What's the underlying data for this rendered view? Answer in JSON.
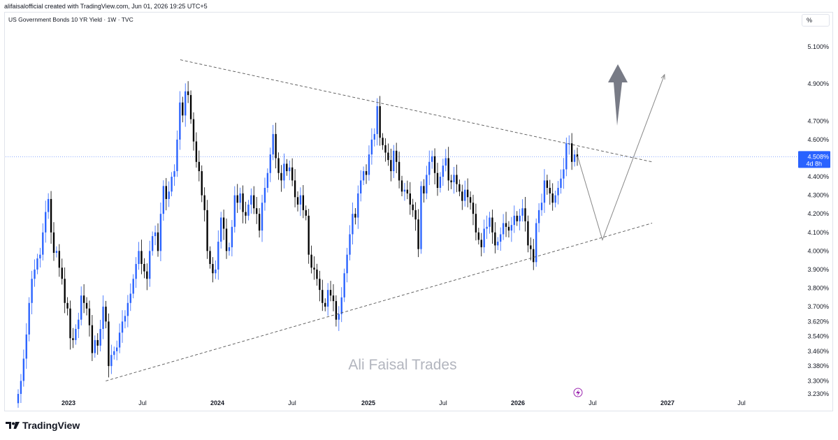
{
  "header": {
    "creator_line": "alifaisalofficial created with TradingView.com, Jun 01, 2026 19:25 UTC+5",
    "symbol_line": "US Government Bonds 10 YR Yield · 1W · TVC",
    "scale_button": "%"
  },
  "footer": {
    "brand": "TradingView"
  },
  "watermark": "Ali Faisal Trades",
  "colors": {
    "up": "#2962ff",
    "down": "#000000",
    "current_price": "#2962ff",
    "trendline": "#555555",
    "projection": "#888888"
  },
  "chart_data": {
    "type": "candlestick",
    "x_ticks": [
      "2023",
      "Jul",
      "2024",
      "Jul",
      "2025",
      "Jul",
      "2026",
      "Jul",
      "2027",
      "Jul"
    ],
    "y_ticks": [
      "5.100%",
      "4.900%",
      "4.700%",
      "4.600%",
      "4.400%",
      "4.300%",
      "4.200%",
      "4.100%",
      "4.000%",
      "3.900%",
      "3.800%",
      "3.700%",
      "3.620%",
      "3.540%",
      "3.460%",
      "3.380%",
      "3.300%",
      "3.230%"
    ],
    "ylim": [
      3.2,
      5.15
    ],
    "y_scale": "percent",
    "current_price_label": "4.508%",
    "countdown_label": "4d 8h",
    "trendlines": [
      {
        "name": "descending resistance",
        "from": [
          "2023-10",
          5.03
        ],
        "to": [
          "2026-12",
          4.48
        ]
      },
      {
        "name": "ascending support",
        "from": [
          "2023-04",
          3.3
        ],
        "to": [
          "2026-12",
          4.15
        ]
      }
    ],
    "projection": [
      [
        "2026-06",
        4.51
      ],
      [
        "2026-08",
        4.06
      ],
      [
        "2027-01",
        4.95
      ]
    ],
    "series": [
      {
        "values": [
          3.23,
          3.3,
          3.42,
          3.55,
          3.72,
          3.85,
          3.9,
          3.96,
          3.98,
          4.1,
          4.21,
          4.28,
          4.1,
          3.99,
          4.0,
          3.91,
          3.85,
          3.72,
          3.69,
          3.53,
          3.52,
          3.58,
          3.63,
          3.76,
          3.72,
          3.69,
          3.6,
          3.45,
          3.52,
          3.49,
          3.58,
          3.7,
          3.62,
          3.38,
          3.44,
          3.46,
          3.48,
          3.56,
          3.62,
          3.65,
          3.72,
          3.77,
          3.85,
          3.93,
          4.0,
          3.93,
          3.89,
          3.85,
          4.0,
          4.08,
          4.1,
          4.0,
          4.2,
          4.35,
          4.28,
          4.32,
          4.4,
          4.43,
          4.6,
          4.8,
          4.73,
          4.86,
          4.84,
          4.71,
          4.59,
          4.48,
          4.43,
          4.3,
          4.22,
          4.0,
          3.93,
          3.88,
          3.9,
          4.05,
          4.18,
          4.12,
          4.0,
          4.02,
          4.13,
          4.3,
          4.26,
          4.31,
          4.21,
          4.19,
          4.25,
          4.3,
          4.23,
          4.2,
          4.11,
          4.26,
          4.34,
          4.42,
          4.52,
          4.63,
          4.5,
          4.42,
          4.38,
          4.47,
          4.43,
          4.45,
          4.38,
          4.29,
          4.25,
          4.3,
          4.22,
          4.19,
          3.98,
          3.91,
          3.9,
          3.85,
          3.79,
          3.72,
          3.7,
          3.79,
          3.76,
          3.73,
          3.63,
          3.66,
          3.75,
          3.88,
          3.98,
          4.09,
          4.2,
          4.18,
          4.31,
          4.38,
          4.43,
          4.41,
          4.52,
          4.6,
          4.63,
          4.78,
          4.61,
          4.57,
          4.53,
          4.49,
          4.43,
          4.54,
          4.48,
          4.38,
          4.32,
          4.33,
          4.31,
          4.25,
          4.22,
          4.17,
          4.01,
          4.35,
          4.31,
          4.41,
          4.48,
          4.51,
          4.42,
          4.34,
          4.4,
          4.46,
          4.5,
          4.38,
          4.37,
          4.41,
          4.36,
          4.32,
          4.27,
          4.33,
          4.29,
          4.26,
          4.2,
          4.1,
          4.06,
          4.02,
          4.12,
          4.13,
          4.18,
          4.1,
          4.03,
          4.05,
          4.09,
          4.15,
          4.13,
          4.11,
          4.14,
          4.19,
          4.16,
          4.19,
          4.23,
          4.16,
          4.03,
          4.01,
          3.94,
          4.15,
          4.22,
          4.26,
          4.38,
          4.34,
          4.31,
          4.26,
          4.3,
          4.34,
          4.39,
          4.44,
          4.58,
          4.58,
          4.48,
          4.52,
          4.508
        ]
      }
    ]
  }
}
